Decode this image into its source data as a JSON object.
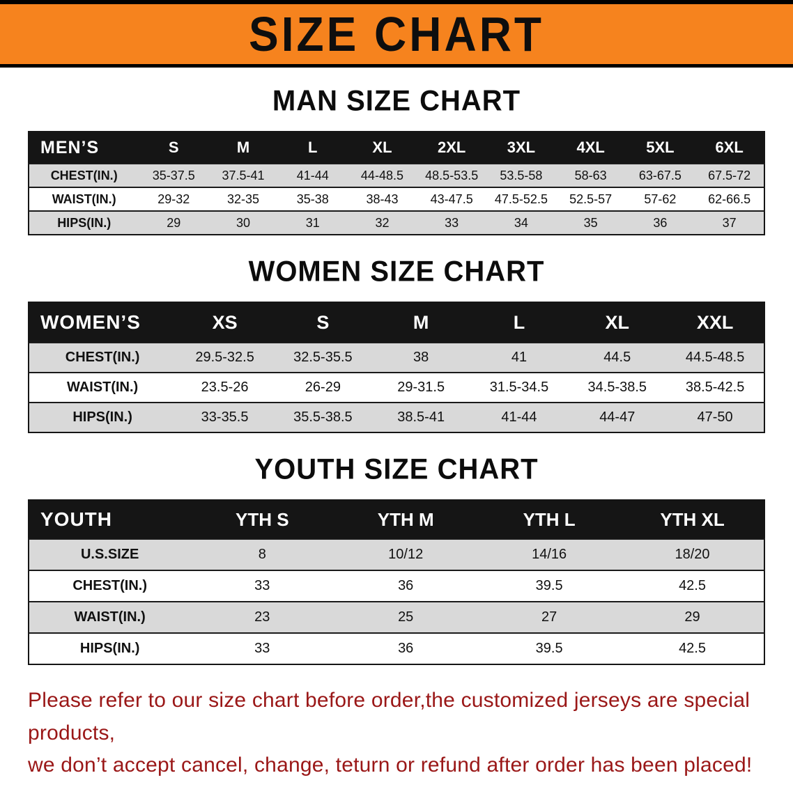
{
  "banner": {
    "title": "SIZE CHART"
  },
  "colors": {
    "banner_bg": "#F6831E",
    "table_header_bg": "#151515",
    "row_stripe": "#D9D9D9",
    "note_red": "#9A1717"
  },
  "sections": [
    {
      "heading": "MAN SIZE CHART",
      "table": {
        "header": [
          "MEN’S",
          "S",
          "M",
          "L",
          "XL",
          "2XL",
          "3XL",
          "4XL",
          "5XL",
          "6XL"
        ],
        "rows": [
          [
            "CHEST(IN.)",
            "35-37.5",
            "37.5-41",
            "41-44",
            "44-48.5",
            "48.5-53.5",
            "53.5-58",
            "58-63",
            "63-67.5",
            "67.5-72"
          ],
          [
            "WAIST(IN.)",
            "29-32",
            "32-35",
            "35-38",
            "38-43",
            "43-47.5",
            "47.5-52.5",
            "52.5-57",
            "57-62",
            "62-66.5"
          ],
          [
            "HIPS(IN.)",
            "29",
            "30",
            "31",
            "32",
            "33",
            "34",
            "35",
            "36",
            "37"
          ]
        ]
      }
    },
    {
      "heading": "WOMEN SIZE CHART",
      "table": {
        "header": [
          "WOMEN’S",
          "XS",
          "S",
          "M",
          "L",
          "XL",
          "XXL"
        ],
        "rows": [
          [
            "CHEST(IN.)",
            "29.5-32.5",
            "32.5-35.5",
            "38",
            "41",
            "44.5",
            "44.5-48.5"
          ],
          [
            "WAIST(IN.)",
            "23.5-26",
            "26-29",
            "29-31.5",
            "31.5-34.5",
            "34.5-38.5",
            "38.5-42.5"
          ],
          [
            "HIPS(IN.)",
            "33-35.5",
            "35.5-38.5",
            "38.5-41",
            "41-44",
            "44-47",
            "47-50"
          ]
        ]
      }
    },
    {
      "heading": "YOUTH SIZE CHART",
      "table": {
        "header": [
          "YOUTH",
          "YTH S",
          "YTH M",
          "YTH L",
          "YTH XL"
        ],
        "rows": [
          [
            "U.S.SIZE",
            "8",
            "10/12",
            "14/16",
            "18/20"
          ],
          [
            "CHEST(IN.)",
            "33",
            "36",
            "39.5",
            "42.5"
          ],
          [
            "WAIST(IN.)",
            "23",
            "25",
            "27",
            "29"
          ],
          [
            "HIPS(IN.)",
            "33",
            "36",
            "39.5",
            "42.5"
          ]
        ]
      }
    }
  ],
  "footer": {
    "line1": "Please refer to our size chart before order,the customized jerseys are special products,",
    "line2": "we don’t accept cancel, change, teturn or refund after order has been placed!"
  }
}
